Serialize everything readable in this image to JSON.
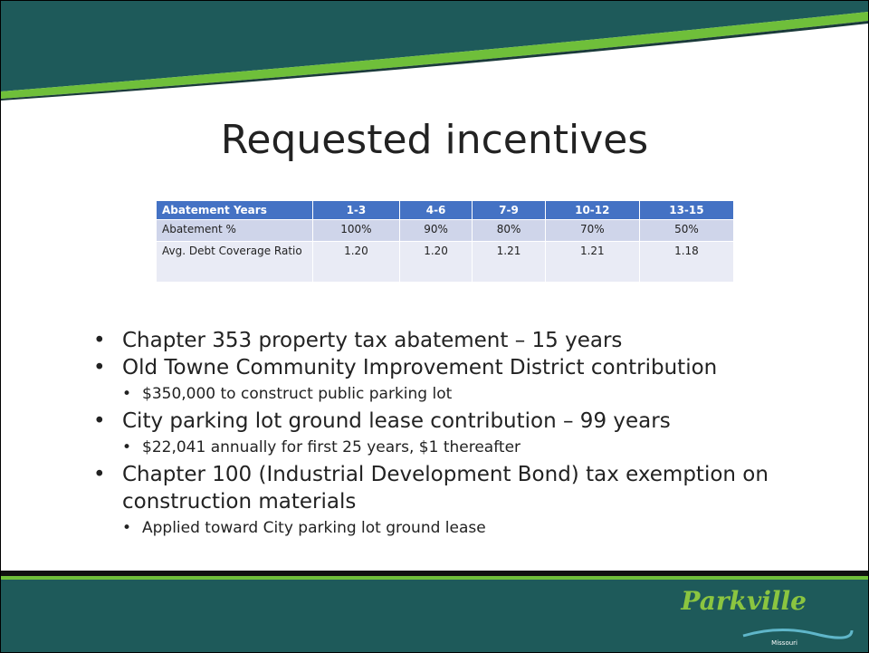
{
  "title": "Requested incentives",
  "table": {
    "header": [
      "Abatement Years",
      "1-3",
      "4-6",
      "7-9",
      "10-12",
      "13-15"
    ],
    "rows": [
      [
        "Abatement %",
        "100%",
        "90%",
        "80%",
        "70%",
        "50%"
      ],
      [
        "Avg. Debt Coverage Ratio",
        "1.20",
        "1.20",
        "1.21",
        "1.21",
        "1.18"
      ]
    ]
  },
  "bullets": [
    {
      "text": "Chapter 353 property tax abatement – 15 years",
      "sub": []
    },
    {
      "text": "Old Towne Community Improvement District contribution",
      "sub": [
        "$350,000 to construct public parking lot"
      ]
    },
    {
      "text": "City parking lot ground lease contribution – 99 years",
      "sub": [
        "$22,041 annually for first 25 years, $1 thereafter"
      ]
    },
    {
      "text": "Chapter 100 (Industrial Development Bond) tax exemption on construction materials",
      "sub": [
        "Applied toward City parking lot ground lease"
      ]
    }
  ],
  "logo": {
    "text": "Parkville",
    "subtext": "Missouri"
  }
}
